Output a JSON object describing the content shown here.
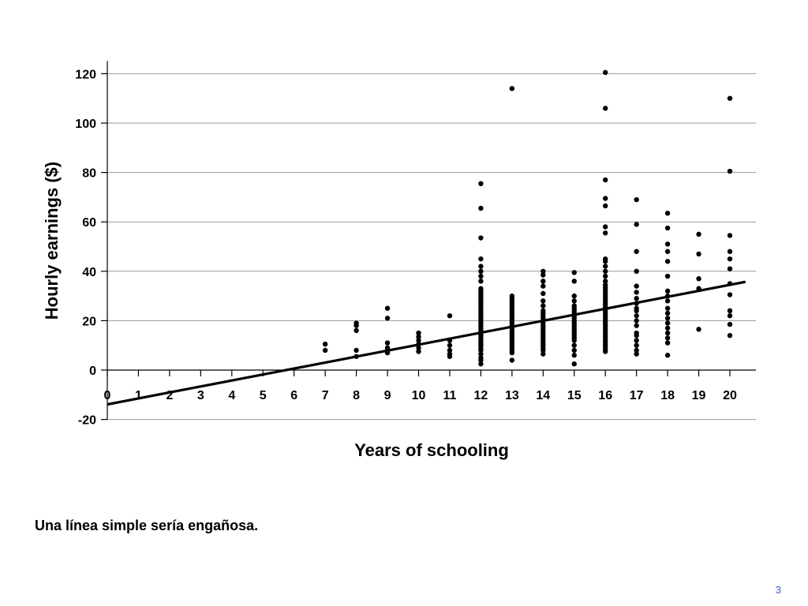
{
  "caption": "Una línea simple sería engañosa.",
  "page_number": "3",
  "colors": {
    "points": "#000000",
    "line": "#000000",
    "grid": "#9a9a9a"
  },
  "chart_data": {
    "type": "scatter",
    "xlabel": "Years of schooling",
    "ylabel": "Hourly earnings ($)",
    "xlim": [
      0,
      20.8
    ],
    "ylim": [
      -20,
      120
    ],
    "x_ticks": [
      0,
      1,
      2,
      3,
      4,
      5,
      6,
      7,
      8,
      9,
      10,
      11,
      12,
      13,
      14,
      15,
      16,
      17,
      18,
      19,
      20
    ],
    "y_ticks": [
      -20,
      0,
      20,
      40,
      60,
      80,
      100,
      120
    ],
    "grid": true,
    "regression_line": {
      "intercept": -13.9,
      "slope": 2.42,
      "x_range": [
        0,
        20.5
      ]
    },
    "points": [
      [
        7,
        8
      ],
      [
        7,
        10.5
      ],
      [
        8,
        5.5
      ],
      [
        8,
        8
      ],
      [
        8,
        16
      ],
      [
        8,
        18
      ],
      [
        8,
        19
      ],
      [
        9,
        7
      ],
      [
        9,
        8
      ],
      [
        9,
        9
      ],
      [
        9,
        11
      ],
      [
        9,
        21
      ],
      [
        9,
        25
      ],
      [
        10,
        7.5
      ],
      [
        10,
        9
      ],
      [
        10,
        10.5
      ],
      [
        10,
        12
      ],
      [
        10,
        13.5
      ],
      [
        10,
        15
      ],
      [
        11,
        5.5
      ],
      [
        11,
        6.5
      ],
      [
        11,
        8
      ],
      [
        11,
        10
      ],
      [
        11,
        12
      ],
      [
        11,
        22
      ],
      [
        12,
        2.5
      ],
      [
        12,
        4
      ],
      [
        12,
        5
      ],
      [
        12,
        6.5
      ],
      [
        12,
        8
      ],
      [
        12,
        9
      ],
      [
        12,
        10
      ],
      [
        12,
        11
      ],
      [
        12,
        12
      ],
      [
        12,
        13
      ],
      [
        12,
        14
      ],
      [
        12,
        15
      ],
      [
        12,
        16
      ],
      [
        12,
        17
      ],
      [
        12,
        18
      ],
      [
        12,
        19
      ],
      [
        12,
        20
      ],
      [
        12,
        21
      ],
      [
        12,
        22
      ],
      [
        12,
        23
      ],
      [
        12,
        24
      ],
      [
        12,
        25
      ],
      [
        12,
        26
      ],
      [
        12,
        27
      ],
      [
        12,
        28
      ],
      [
        12,
        29
      ],
      [
        12,
        30
      ],
      [
        12,
        31
      ],
      [
        12,
        32
      ],
      [
        12,
        33
      ],
      [
        12,
        36
      ],
      [
        12,
        38
      ],
      [
        12,
        40
      ],
      [
        12,
        42
      ],
      [
        12,
        45
      ],
      [
        12,
        53.5
      ],
      [
        12,
        65.5
      ],
      [
        12,
        75.5
      ],
      [
        13,
        4
      ],
      [
        13,
        7
      ],
      [
        13,
        8
      ],
      [
        13,
        9
      ],
      [
        13,
        10
      ],
      [
        13,
        11
      ],
      [
        13,
        12
      ],
      [
        13,
        13
      ],
      [
        13,
        14
      ],
      [
        13,
        15
      ],
      [
        13,
        16
      ],
      [
        13,
        17
      ],
      [
        13,
        18
      ],
      [
        13,
        19
      ],
      [
        13,
        20
      ],
      [
        13,
        21
      ],
      [
        13,
        22
      ],
      [
        13,
        23
      ],
      [
        13,
        24
      ],
      [
        13,
        25
      ],
      [
        13,
        26
      ],
      [
        13,
        27
      ],
      [
        13,
        28
      ],
      [
        13,
        29
      ],
      [
        13,
        30
      ],
      [
        13,
        114
      ],
      [
        14,
        6.5
      ],
      [
        14,
        8
      ],
      [
        14,
        9
      ],
      [
        14,
        10
      ],
      [
        14,
        11
      ],
      [
        14,
        12
      ],
      [
        14,
        13
      ],
      [
        14,
        14
      ],
      [
        14,
        15
      ],
      [
        14,
        16
      ],
      [
        14,
        17
      ],
      [
        14,
        18
      ],
      [
        14,
        19
      ],
      [
        14,
        20
      ],
      [
        14,
        21
      ],
      [
        14,
        22
      ],
      [
        14,
        23
      ],
      [
        14,
        24
      ],
      [
        14,
        26
      ],
      [
        14,
        28
      ],
      [
        14,
        31
      ],
      [
        14,
        34
      ],
      [
        14,
        36
      ],
      [
        14,
        38.5
      ],
      [
        14,
        40
      ],
      [
        15,
        2.5
      ],
      [
        15,
        6
      ],
      [
        15,
        8
      ],
      [
        15,
        10
      ],
      [
        15,
        12
      ],
      [
        15,
        13
      ],
      [
        15,
        14
      ],
      [
        15,
        15
      ],
      [
        15,
        16
      ],
      [
        15,
        17
      ],
      [
        15,
        18
      ],
      [
        15,
        19
      ],
      [
        15,
        20
      ],
      [
        15,
        21
      ],
      [
        15,
        22
      ],
      [
        15,
        23
      ],
      [
        15,
        24
      ],
      [
        15,
        25
      ],
      [
        15,
        26
      ],
      [
        15,
        28
      ],
      [
        15,
        30
      ],
      [
        15,
        36
      ],
      [
        15,
        39.5
      ],
      [
        16,
        7.5
      ],
      [
        16,
        8.5
      ],
      [
        16,
        9.5
      ],
      [
        16,
        10.5
      ],
      [
        16,
        11.5
      ],
      [
        16,
        12.5
      ],
      [
        16,
        13.5
      ],
      [
        16,
        14.5
      ],
      [
        16,
        15.5
      ],
      [
        16,
        16.5
      ],
      [
        16,
        17.5
      ],
      [
        16,
        18.5
      ],
      [
        16,
        19.5
      ],
      [
        16,
        20.5
      ],
      [
        16,
        21.5
      ],
      [
        16,
        22.5
      ],
      [
        16,
        23.5
      ],
      [
        16,
        24.5
      ],
      [
        16,
        25.5
      ],
      [
        16,
        26.5
      ],
      [
        16,
        27.5
      ],
      [
        16,
        28.5
      ],
      [
        16,
        29.5
      ],
      [
        16,
        30.5
      ],
      [
        16,
        31.5
      ],
      [
        16,
        32.5
      ],
      [
        16,
        33.5
      ],
      [
        16,
        34.5
      ],
      [
        16,
        36
      ],
      [
        16,
        38
      ],
      [
        16,
        40
      ],
      [
        16,
        42
      ],
      [
        16,
        44
      ],
      [
        16,
        45
      ],
      [
        16,
        55.5
      ],
      [
        16,
        58
      ],
      [
        16,
        66.5
      ],
      [
        16,
        69.5
      ],
      [
        16,
        77
      ],
      [
        16,
        106
      ],
      [
        16,
        120.5
      ],
      [
        17,
        6.5
      ],
      [
        17,
        8
      ],
      [
        17,
        10
      ],
      [
        17,
        12
      ],
      [
        17,
        14
      ],
      [
        17,
        15
      ],
      [
        17,
        18
      ],
      [
        17,
        20
      ],
      [
        17,
        22
      ],
      [
        17,
        24
      ],
      [
        17,
        25
      ],
      [
        17,
        27
      ],
      [
        17,
        29
      ],
      [
        17,
        31.5
      ],
      [
        17,
        34
      ],
      [
        17,
        40
      ],
      [
        17,
        48
      ],
      [
        17,
        59
      ],
      [
        17,
        69
      ],
      [
        18,
        6
      ],
      [
        18,
        11
      ],
      [
        18,
        13
      ],
      [
        18,
        15
      ],
      [
        18,
        17
      ],
      [
        18,
        19
      ],
      [
        18,
        21
      ],
      [
        18,
        23
      ],
      [
        18,
        25
      ],
      [
        18,
        28
      ],
      [
        18,
        30
      ],
      [
        18,
        32
      ],
      [
        18,
        38
      ],
      [
        18,
        44
      ],
      [
        18,
        48
      ],
      [
        18,
        51
      ],
      [
        18,
        57.5
      ],
      [
        18,
        63.5
      ],
      [
        19,
        16.5
      ],
      [
        19,
        33
      ],
      [
        19,
        37
      ],
      [
        19,
        47
      ],
      [
        19,
        55
      ],
      [
        20,
        14
      ],
      [
        20,
        18.5
      ],
      [
        20,
        22
      ],
      [
        20,
        24
      ],
      [
        20,
        30.5
      ],
      [
        20,
        35
      ],
      [
        20,
        41
      ],
      [
        20,
        45
      ],
      [
        20,
        48
      ],
      [
        20,
        54.5
      ],
      [
        20,
        80.5
      ],
      [
        20,
        110
      ]
    ]
  }
}
